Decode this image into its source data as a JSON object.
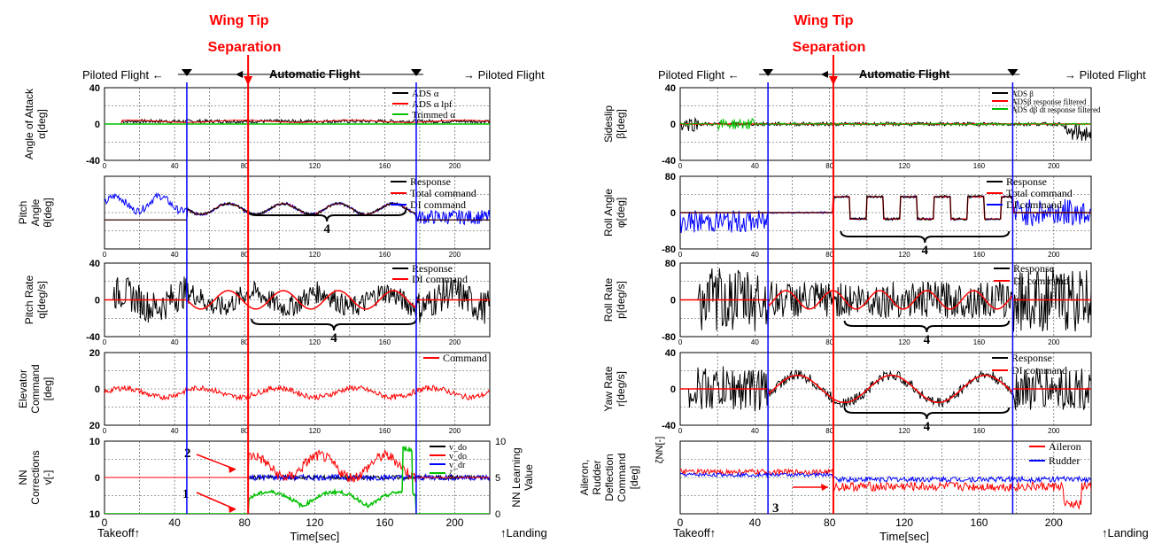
{
  "colors": {
    "response": "#000000",
    "command": "#ff0000",
    "di_command": "#0000ff",
    "trimmed": "#00c000",
    "marker_blue": "#0000ff",
    "marker_red": "#ff0000"
  },
  "left": {
    "event_title_1": "Wing Tip",
    "event_title_2": "Separation",
    "phase_left": "Piloted Flight ←",
    "phase_center": "Automatic Flight",
    "phase_right": "→ Piloted Flight",
    "x_ticks": [
      "0",
      "40",
      "80",
      "120",
      "160",
      "200"
    ],
    "x_ticks_values": [
      0,
      40,
      80,
      120,
      160,
      200
    ],
    "xlabel": "Time[sec]",
    "takeoff": "Takeoff↑",
    "landing": "↑Landing",
    "markers": [
      47,
      82,
      178
    ],
    "panels": [
      {
        "ylabel1": "Angle of Attack",
        "ylabel2": "α[deg]",
        "yticks": [
          "40",
          "0",
          "-40"
        ],
        "show_xticks": true,
        "legend": [
          "ADS α",
          "ADS α lpf",
          "Trimmed α"
        ]
      },
      {
        "ylabel1": "Pitch",
        "ylabel2": "Angle",
        "ylabel3": "θ[deg]",
        "yticks": [],
        "show_xticks": true,
        "legend": [
          "Response",
          "Total command",
          "DI command"
        ],
        "brace": "4"
      },
      {
        "ylabel1": "Pitch Rate",
        "ylabel2": "q[deg/s]",
        "yticks": [
          "40",
          "0",
          "-40"
        ],
        "show_xticks": true,
        "legend": [
          "Response",
          "DI command"
        ],
        "brace": "4"
      },
      {
        "ylabel1": "Elevator",
        "ylabel2": "Command",
        "ylabel3": "[deg]",
        "yticks": [
          "20",
          "0",
          "20"
        ],
        "show_xticks": true,
        "legend": [
          "Command"
        ]
      },
      {
        "ylabel1": "NN",
        "ylabel2": "Corrections",
        "ylabel3": "v[-]",
        "yticks": [
          "10",
          "0",
          "10"
        ],
        "show_xticks": false,
        "legend": [
          "v_do",
          "v_do",
          "v_dr",
          "ζ_"
        ],
        "right_label1": "NN Learning",
        "right_label2": "Value",
        "right_ticks": [
          "10",
          "5",
          "0"
        ],
        "annotations": [
          "2",
          "1"
        ]
      }
    ]
  },
  "right": {
    "event_title_1": "Wing Tip",
    "event_title_2": "Separation",
    "phase_left": "Piloted Flight ←",
    "phase_center": "Automatic Flight",
    "phase_right": "→ Piloted Flight",
    "x_ticks": [
      "0",
      "40",
      "80",
      "120",
      "160",
      "200"
    ],
    "x_ticks_values": [
      0,
      40,
      80,
      120,
      160,
      200
    ],
    "xlabel": "Time[sec]",
    "takeoff": "Takeoff↑",
    "landing": "↑Landing",
    "markers": [
      47,
      82,
      178
    ],
    "panels": [
      {
        "ylabel1": "Sideslip",
        "ylabel2": "β[deg]",
        "yticks": [
          "40",
          "0",
          "-40"
        ],
        "show_xticks": true,
        "legend": [
          "ADS β",
          "ADSβ response filtered",
          "ADS dβ dt response filtered"
        ]
      },
      {
        "ylabel1": "Roll Angle",
        "ylabel2": "φ[deg]",
        "yticks": [
          "80",
          "0",
          "-80"
        ],
        "show_xticks": true,
        "legend": [
          "Response",
          "Total command",
          "DI command"
        ],
        "brace": "4"
      },
      {
        "ylabel1": "Roll Rate",
        "ylabel2": "p[deg/s]",
        "yticks": [
          "80",
          "0",
          "-80"
        ],
        "show_xticks": true,
        "legend": [
          "Response",
          "DI command"
        ],
        "brace": "4"
      },
      {
        "ylabel1": "Yaw Rate",
        "ylabel2": "r[deg/s]",
        "yticks": [
          "40",
          "0",
          "-40"
        ],
        "show_xticks": true,
        "legend": [
          "Response",
          "DI command"
        ],
        "brace": "4"
      },
      {
        "ylabel1": "Aileron,",
        "ylabel2": "Rudder",
        "ylabel3": "Deflection",
        "ylabel4": "Command",
        "ylabel5": "[deg]",
        "yticks": [],
        "show_xticks": false,
        "legend": [
          "Aileron",
          "Rudder"
        ],
        "annotations": [
          "3"
        ],
        "left_extra": "ζNN[-]"
      }
    ]
  },
  "chart_data": [
    {
      "type": "line",
      "xlabel": "Time[sec]",
      "ylabel": "α[deg]",
      "xlim": [
        0,
        220
      ],
      "ylim": [
        -40,
        40
      ],
      "series": [
        {
          "name": "ADS α",
          "summary": [
            [
              0,
              0
            ],
            [
              20,
              3
            ],
            [
              80,
              4
            ],
            [
              200,
              4
            ],
            [
              215,
              2
            ]
          ]
        },
        {
          "name": "ADS α lpf",
          "summary": [
            [
              0,
              0
            ],
            [
              20,
              3
            ],
            [
              80,
              4
            ],
            [
              200,
              4
            ],
            [
              215,
              2
            ]
          ]
        },
        {
          "name": "Trimmed α",
          "summary": [
            [
              0,
              0
            ],
            [
              220,
              0
            ]
          ]
        }
      ]
    },
    {
      "type": "line",
      "xlabel": "Time[sec]",
      "ylabel": "θ[deg]",
      "xlim": [
        0,
        220
      ],
      "series": [
        {
          "name": "Response"
        },
        {
          "name": "Total command"
        },
        {
          "name": "DI command"
        }
      ]
    },
    {
      "type": "line",
      "xlabel": "Time[sec]",
      "ylabel": "q[deg/s]",
      "xlim": [
        0,
        220
      ],
      "ylim": [
        -40,
        40
      ],
      "series": [
        {
          "name": "Response"
        },
        {
          "name": "DI command"
        }
      ]
    },
    {
      "type": "line",
      "xlabel": "Time[sec]",
      "ylabel": "[deg]",
      "xlim": [
        0,
        220
      ],
      "ylim": [
        -20,
        20
      ],
      "series": [
        {
          "name": "Command"
        }
      ]
    },
    {
      "type": "line",
      "xlabel": "Time[sec]",
      "ylabel": "v[-]",
      "xlim": [
        0,
        220
      ],
      "ylim": [
        -10,
        10
      ],
      "series": [
        {
          "name": "v_do"
        },
        {
          "name": "v_do"
        },
        {
          "name": "v_dr"
        },
        {
          "name": "ζ_"
        }
      ]
    },
    {
      "type": "line",
      "xlabel": "Time[sec]",
      "ylabel": "β[deg]",
      "xlim": [
        0,
        220
      ],
      "ylim": [
        -40,
        40
      ],
      "series": [
        {
          "name": "ADS β"
        },
        {
          "name": "ADSβ response filtered"
        },
        {
          "name": "ADS dβ dt response filtered"
        }
      ]
    },
    {
      "type": "line",
      "xlabel": "Time[sec]",
      "ylabel": "φ[deg]",
      "xlim": [
        0,
        220
      ],
      "ylim": [
        -80,
        80
      ],
      "series": [
        {
          "name": "Response"
        },
        {
          "name": "Total command"
        },
        {
          "name": "DI command"
        }
      ]
    },
    {
      "type": "line",
      "xlabel": "Time[sec]",
      "ylabel": "p[deg/s]",
      "xlim": [
        0,
        220
      ],
      "ylim": [
        -80,
        80
      ],
      "series": [
        {
          "name": "Response"
        },
        {
          "name": "DI command"
        }
      ]
    },
    {
      "type": "line",
      "xlabel": "Time[sec]",
      "ylabel": "r[deg/s]",
      "xlim": [
        0,
        220
      ],
      "ylim": [
        -40,
        40
      ],
      "series": [
        {
          "name": "Response"
        },
        {
          "name": "DI command"
        }
      ]
    },
    {
      "type": "line",
      "xlabel": "Time[sec]",
      "ylabel": "[deg]",
      "xlim": [
        0,
        220
      ],
      "series": [
        {
          "name": "Aileron"
        },
        {
          "name": "Rudder"
        }
      ]
    }
  ]
}
